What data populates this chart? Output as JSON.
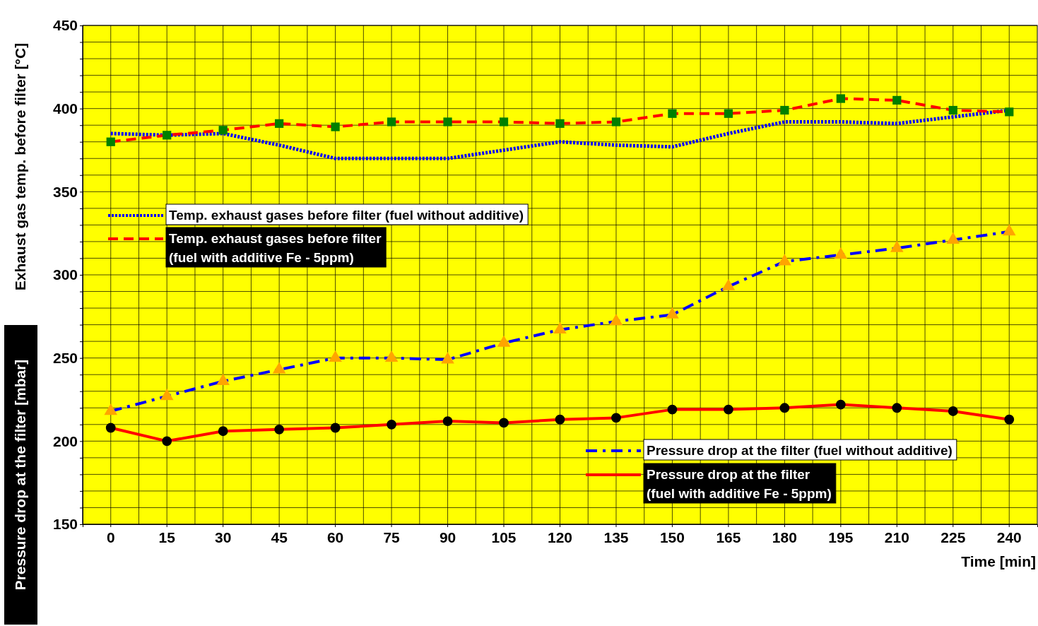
{
  "chart_data": {
    "type": "line",
    "ylabel": "Exhaust gas temp. before filter [°C]",
    "xlabel": "Time [min]",
    "annotations": [
      "Pressure drop at the filter [mbar]"
    ],
    "categories": [
      "0",
      "15",
      "30",
      "45",
      "60",
      "75",
      "90",
      "105",
      "120",
      "135",
      "150",
      "165",
      "180",
      "195",
      "210",
      "225",
      "240"
    ],
    "ylim": [
      150,
      450
    ],
    "yticks": [
      150,
      {
        "value": 160,
        "label": null
      },
      {
        "value": 170,
        "label": null
      },
      {
        "value": 180,
        "label": null
      },
      {
        "value": 190,
        "label": null
      },
      200,
      {
        "value": 210,
        "label": null
      },
      {
        "value": 220,
        "label": null
      },
      {
        "value": 230,
        "label": null
      },
      {
        "value": 240,
        "label": null
      },
      250,
      {
        "value": 260,
        "label": null
      },
      {
        "value": 270,
        "label": null
      },
      {
        "value": 280,
        "label": null
      },
      {
        "value": 290,
        "label": null
      },
      300,
      {
        "value": 310,
        "label": null
      },
      {
        "value": 320,
        "label": null
      },
      {
        "value": 330,
        "label": null
      },
      {
        "value": 340,
        "label": null
      },
      350,
      {
        "value": 360,
        "label": null
      },
      {
        "value": 370,
        "label": null
      },
      {
        "value": 380,
        "label": null
      },
      {
        "value": 390,
        "label": null
      },
      400,
      {
        "value": 410,
        "label": null
      },
      {
        "value": 420,
        "label": null
      },
      {
        "value": 430,
        "label": null
      },
      {
        "value": 440,
        "label": null
      },
      450
    ],
    "grid": true,
    "legend": "left",
    "series": [
      {
        "name": "Temp. exhaust gases before filter (fuel without additive)",
        "color": "#0000ff",
        "line_style": "dotted",
        "marker": "none",
        "values": [
          385,
          384,
          385,
          378,
          370,
          370,
          370,
          375,
          380,
          378,
          377,
          385,
          392,
          392,
          391,
          395,
          399
        ]
      },
      {
        "name": "Temp. exhaust gases before filter (fuel with additive Fe - 5ppm)",
        "color": "#ff0000",
        "line_style": "dashed",
        "marker": "square",
        "colors": [
          "#008000",
          "#008000",
          "#008000",
          "#008000",
          "#008000",
          "#008000",
          "#008000",
          "#008000",
          "#008000",
          "#008000",
          "#008000",
          "#008000",
          "#008000",
          "#008000",
          "#008000",
          "#008000",
          "#008000"
        ],
        "values": [
          380,
          384,
          387,
          391,
          389,
          392,
          392,
          392,
          391,
          392,
          397,
          397,
          399,
          406,
          405,
          399,
          398
        ]
      },
      {
        "name": "Pressure drop at the filter (fuel without additive)",
        "color": "#0000ff",
        "line_style": "dashdot",
        "marker": "triangle",
        "colors": [
          "#ffa500",
          "#ffa500",
          "#ffa500",
          "#ffa500",
          "#ffa500",
          "#ffa500",
          "#ffa500",
          "#ffa500",
          "#ffa500",
          "#ffa500",
          "#ffa500",
          "#ffa500",
          "#ffa500",
          "#ffa500",
          "#ffa500",
          "#ffa500",
          "#ffa500"
        ],
        "values": [
          218,
          227,
          236,
          243,
          250,
          250,
          249,
          259,
          267,
          272,
          276,
          293,
          308,
          312,
          316,
          321,
          326
        ]
      },
      {
        "name": "Pressure drop at the filter (fuel with additive Fe - 5ppm)",
        "color": "#ff0000",
        "line_style": "solid",
        "marker": "circle",
        "colors": [
          "#000000",
          "#000000",
          "#000000",
          "#000000",
          "#000000",
          "#000000",
          "#000000",
          "#000000",
          "#000000",
          "#000000",
          "#000000",
          "#000000",
          "#000000",
          "#000000",
          "#000000",
          "#000000",
          "#000000"
        ],
        "values": [
          208,
          200,
          206,
          207,
          208,
          210,
          212,
          211,
          213,
          214,
          219,
          219,
          220,
          222,
          220,
          218,
          213
        ]
      }
    ]
  }
}
